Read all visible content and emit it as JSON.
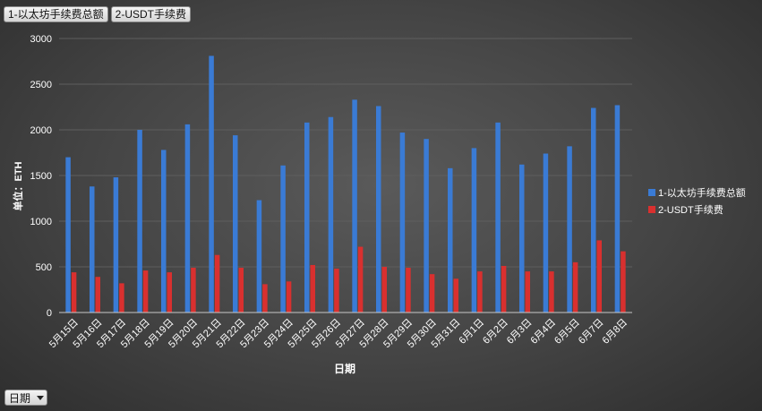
{
  "tabs": [
    {
      "label": "1-以太坊手续费总额"
    },
    {
      "label": "2-USDT手续费"
    }
  ],
  "filter": {
    "label": "日期"
  },
  "colors": {
    "series1": "#3a7bd5",
    "series2": "#d9302f",
    "grid": "#5e5e5e",
    "axis": "#c8c8c8"
  },
  "chart_data": {
    "type": "bar",
    "xlabel": "日期",
    "ylabel": "单位：ETH",
    "ylim": [
      0,
      3000
    ],
    "yticks": [
      0,
      500,
      1000,
      1500,
      2000,
      2500,
      3000
    ],
    "grid": true,
    "legend_position": "right",
    "categories": [
      "5月15日",
      "5月16日",
      "5月17日",
      "5月18日",
      "5月19日",
      "5月20日",
      "5月21日",
      "5月22日",
      "5月23日",
      "5月24日",
      "5月25日",
      "5月26日",
      "5月27日",
      "5月28日",
      "5月29日",
      "5月30日",
      "5月31日",
      "6月1日",
      "6月2日",
      "6月3日",
      "6月4日",
      "6月5日",
      "6月7日",
      "6月8日"
    ],
    "series": [
      {
        "name": "1-以太坊手续费总额",
        "values": [
          1700,
          1380,
          1480,
          2000,
          1780,
          2060,
          2810,
          1940,
          1230,
          1610,
          2080,
          2140,
          2330,
          2260,
          1970,
          1900,
          1580,
          1800,
          2080,
          1620,
          1740,
          1820,
          2240,
          2270
        ]
      },
      {
        "name": "2-USDT手续费",
        "values": [
          440,
          390,
          320,
          460,
          440,
          490,
          630,
          490,
          310,
          340,
          520,
          480,
          720,
          500,
          490,
          420,
          370,
          450,
          510,
          450,
          450,
          550,
          790,
          670
        ]
      }
    ]
  }
}
